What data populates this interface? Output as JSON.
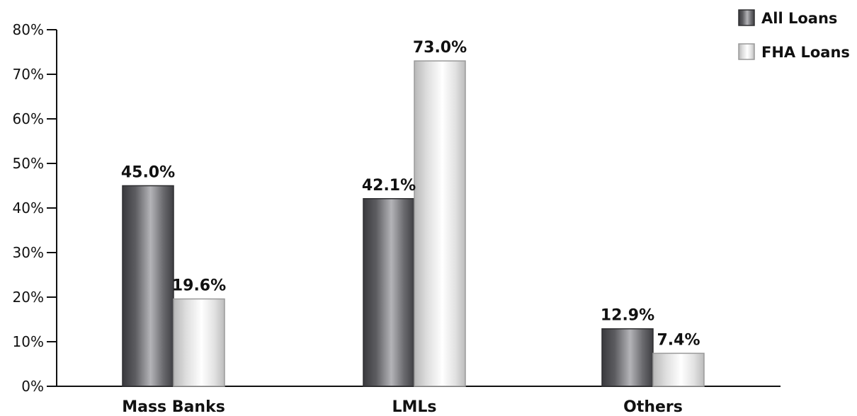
{
  "chart_data": {
    "type": "bar",
    "title": "",
    "xlabel": "",
    "ylabel": "",
    "categories": [
      "Mass Banks",
      "LMLs",
      "Others"
    ],
    "series": [
      {
        "name": "All Loans",
        "values": [
          45.0,
          42.1,
          12.9
        ],
        "labels": [
          "45.0%",
          "42.1%",
          "12.9%"
        ],
        "color": "#6e6e72"
      },
      {
        "name": "FHA Loans",
        "values": [
          19.6,
          73.0,
          7.4
        ],
        "labels": [
          "19.6%",
          "73.0%",
          "7.4%"
        ],
        "color": "#e8e8e8"
      }
    ],
    "ylim": [
      0,
      80
    ],
    "yticks": [
      0,
      10,
      20,
      30,
      40,
      50,
      60,
      70,
      80
    ],
    "ytick_labels": [
      "0%",
      "10%",
      "20%",
      "30%",
      "40%",
      "50%",
      "60%",
      "70%",
      "80%"
    ],
    "grid": false,
    "legend_position": "top-right"
  }
}
